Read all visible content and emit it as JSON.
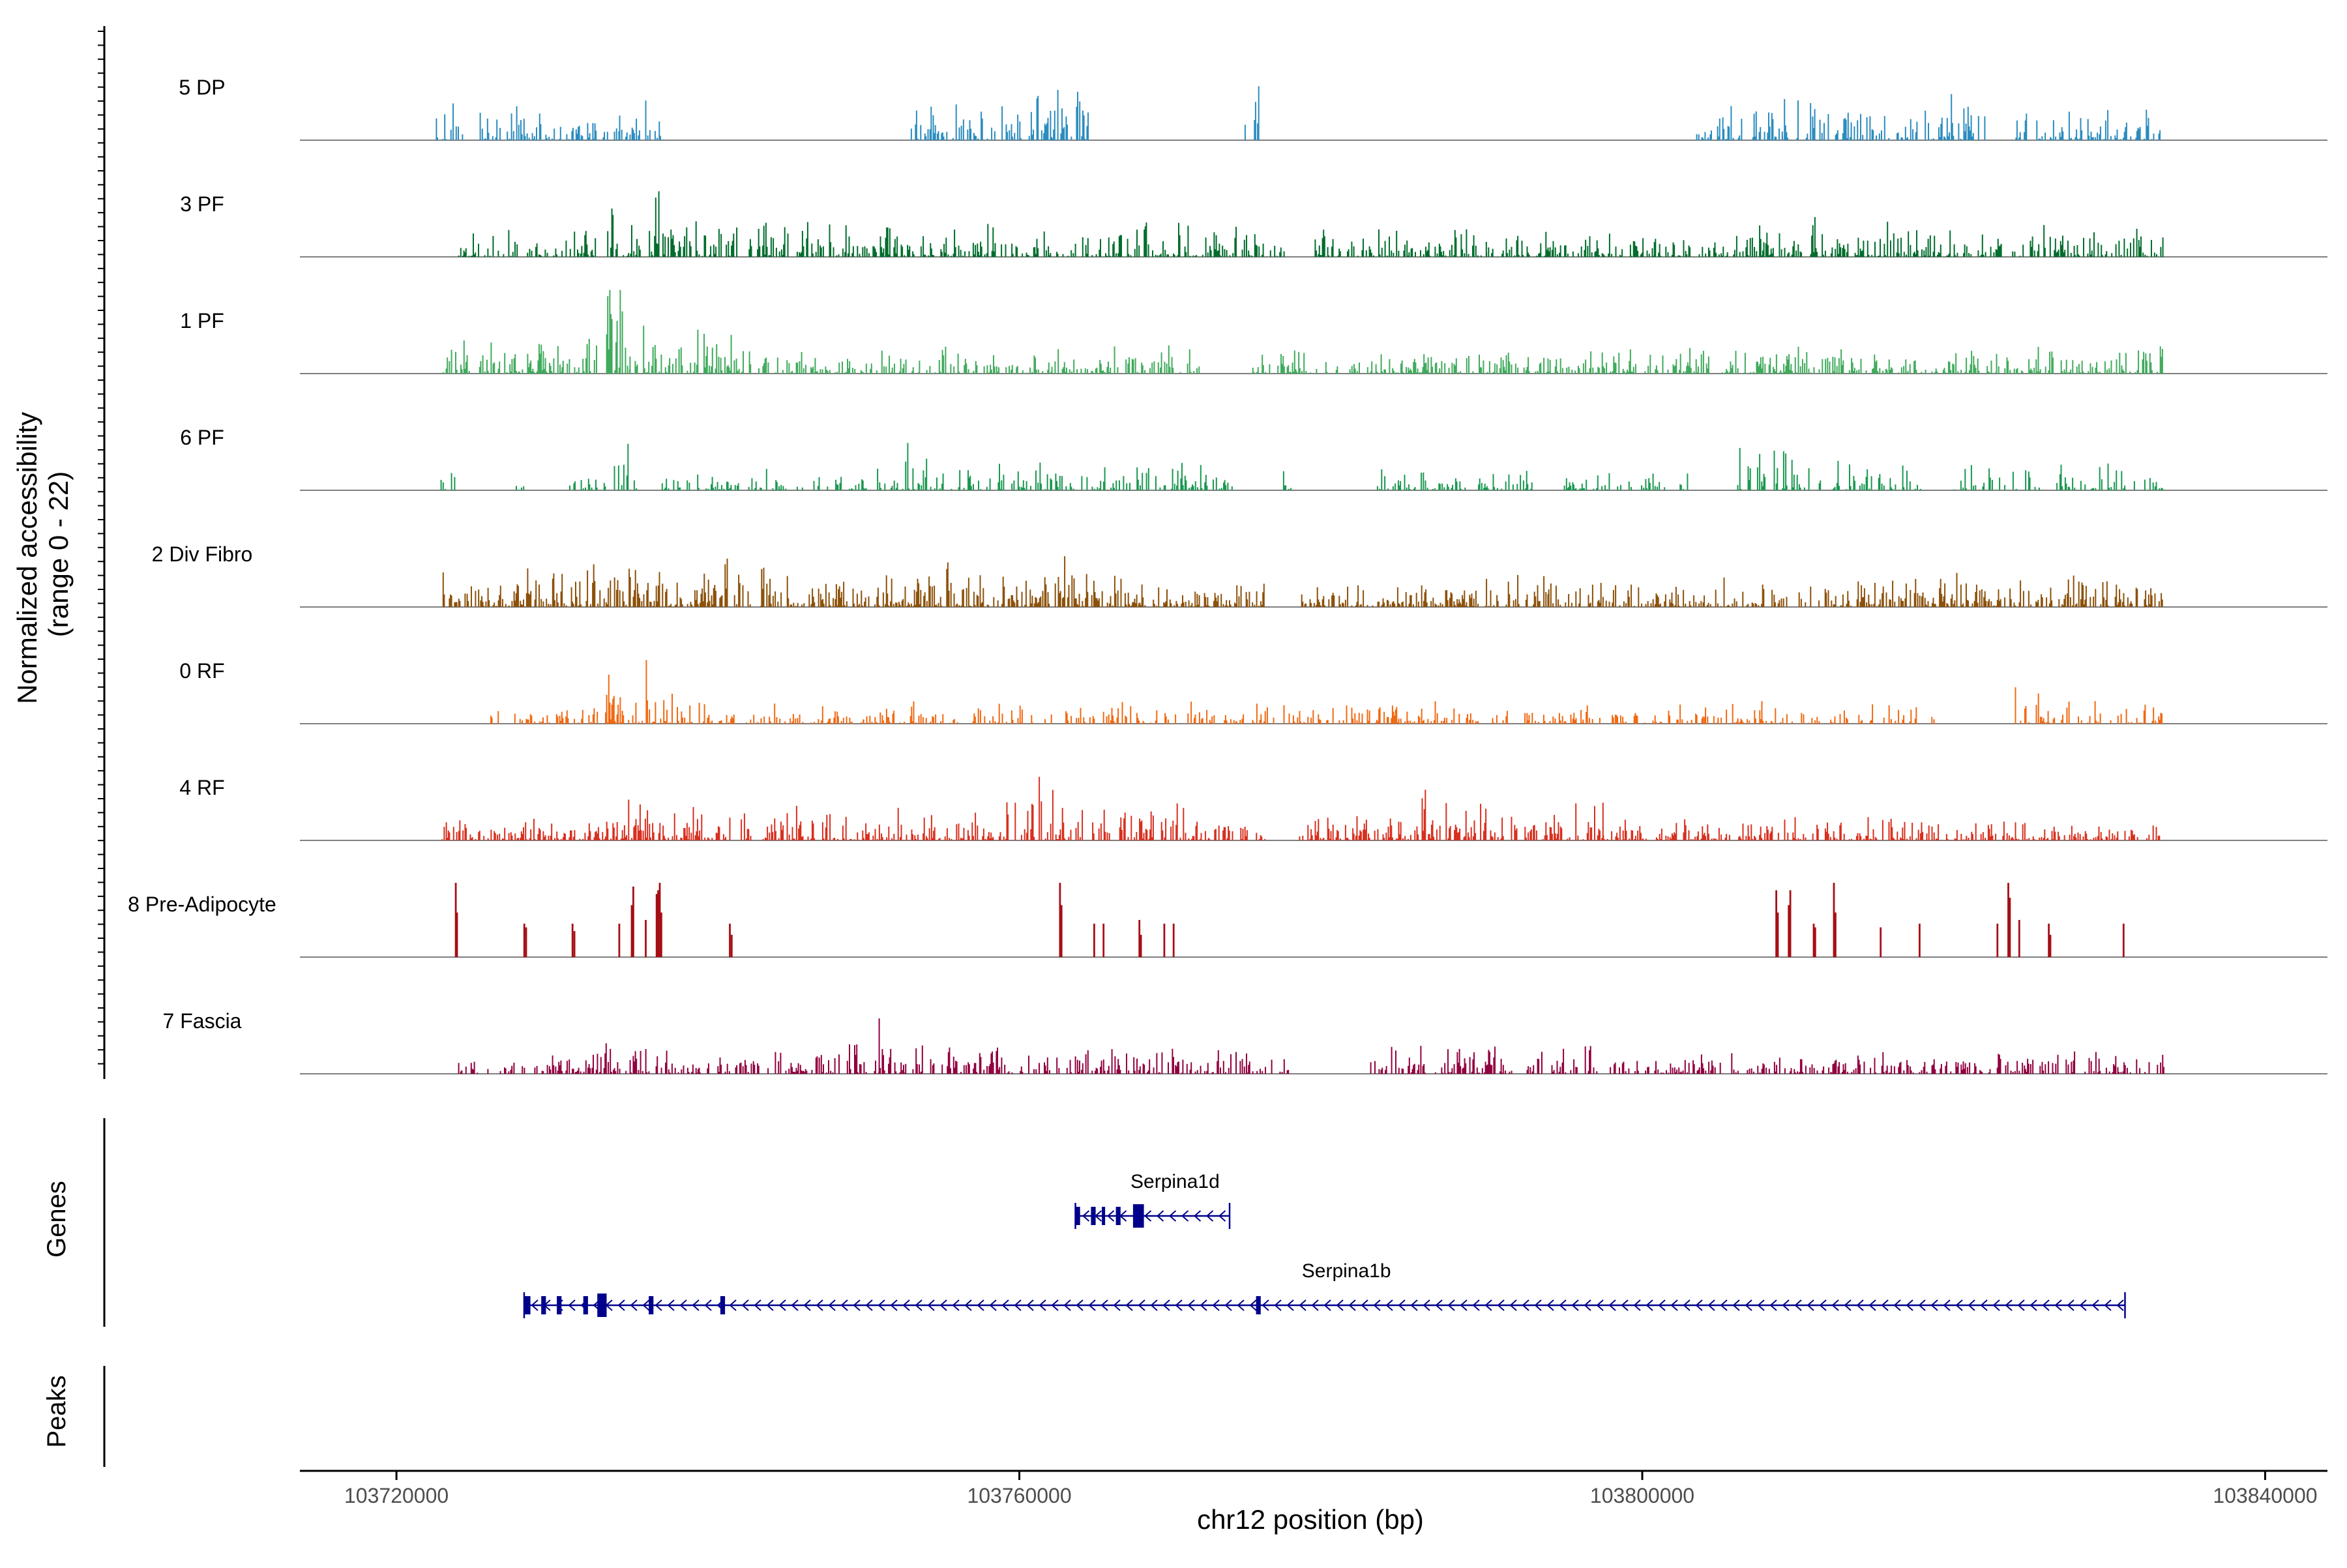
{
  "chart_data": {
    "type": "genome-browser-coverage",
    "y_axis_title_line1": "Normalized accessibility",
    "y_axis_title_line2": "(range 0 - 22)",
    "y_range": [
      0,
      22
    ],
    "x_axis_title": "chr12 position (bp)",
    "x_range": [
      103713800,
      103844000
    ],
    "x_ticks": [
      {
        "value": 103720000,
        "label": "103720000"
      },
      {
        "value": 103760000,
        "label": "103760000"
      },
      {
        "value": 103800000,
        "label": "103800000"
      },
      {
        "value": 103840000,
        "label": "103840000"
      }
    ],
    "tracks": [
      {
        "label": "5 DP",
        "color": "#2b8cbe",
        "seed": 11,
        "density": 0.55,
        "max_height": 0.32,
        "clusters": [
          [
            103722500,
            103734500,
            0.7
          ],
          [
            103734000,
            103737000,
            1.0
          ],
          [
            103753000,
            103762000,
            0.8
          ],
          [
            103761000,
            103764500,
            1.3
          ],
          [
            103774500,
            103775500,
            1.1
          ],
          [
            103803500,
            103809000,
            0.8
          ],
          [
            103809000,
            103822000,
            0.9
          ],
          [
            103824000,
            103833500,
            0.6
          ]
        ]
      },
      {
        "label": "3 PF",
        "color": "#006d2c",
        "seed": 23,
        "density": 0.6,
        "max_height": 0.34,
        "clusters": [
          [
            103724000,
            103733000,
            0.6
          ],
          [
            103733500,
            103737500,
            1.4
          ],
          [
            103737500,
            103748000,
            0.8
          ],
          [
            103748000,
            103763000,
            0.6
          ],
          [
            103763000,
            103777000,
            0.7
          ],
          [
            103779000,
            103790000,
            0.6
          ],
          [
            103790000,
            103806000,
            0.5
          ],
          [
            103806000,
            103812000,
            0.9
          ],
          [
            103812000,
            103833500,
            0.6
          ]
        ]
      },
      {
        "label": "1 PF",
        "color": "#41ab5d",
        "seed": 37,
        "density": 0.6,
        "max_height": 0.5,
        "clusters": [
          [
            103723000,
            103733000,
            0.5
          ],
          [
            103733500,
            103735000,
            1.4
          ],
          [
            103735000,
            103742000,
            0.6
          ],
          [
            103742000,
            103772000,
            0.35
          ],
          [
            103775000,
            103790000,
            0.3
          ],
          [
            103790000,
            103833500,
            0.35
          ]
        ]
      },
      {
        "label": "6 PF",
        "color": "#1a9850",
        "seed": 41,
        "density": 0.45,
        "max_height": 0.36,
        "clusters": [
          [
            103722800,
            103723800,
            0.6
          ],
          [
            103727500,
            103728200,
            0.4
          ],
          [
            103731000,
            103733500,
            0.3
          ],
          [
            103733800,
            103735800,
            1.4
          ],
          [
            103737000,
            103745000,
            0.4
          ],
          [
            103745000,
            103752500,
            0.4
          ],
          [
            103752500,
            103754500,
            0.8
          ],
          [
            103754500,
            103774000,
            0.5
          ],
          [
            103776500,
            103777500,
            0.7
          ],
          [
            103783000,
            103793000,
            0.45
          ],
          [
            103795000,
            103803000,
            0.4
          ],
          [
            103806000,
            103810500,
            0.8
          ],
          [
            103810500,
            103818000,
            0.5
          ],
          [
            103820000,
            103831000,
            0.55
          ],
          [
            103831000,
            103833500,
            0.5
          ]
        ]
      },
      {
        "label": "2 Div Fibro",
        "color": "#8c510a",
        "seed": 53,
        "density": 0.65,
        "max_height": 0.3,
        "clusters": [
          [
            103722800,
            103732000,
            0.8
          ],
          [
            103732000,
            103744500,
            1.0
          ],
          [
            103744500,
            103753000,
            0.7
          ],
          [
            103753000,
            103767000,
            1.0
          ],
          [
            103767000,
            103776000,
            0.55
          ],
          [
            103778000,
            103790000,
            0.5
          ],
          [
            103790000,
            103794000,
            1.0
          ],
          [
            103794000,
            103813000,
            0.6
          ],
          [
            103813000,
            103820000,
            0.7
          ],
          [
            103820000,
            103833500,
            0.7
          ]
        ]
      },
      {
        "label": "0 RF",
        "color": "#f16913",
        "seed": 67,
        "density": 0.5,
        "max_height": 0.48,
        "clusters": [
          [
            103722800,
            103723200,
            0.2
          ],
          [
            103726000,
            103733500,
            0.3
          ],
          [
            103733500,
            103736500,
            1.4
          ],
          [
            103736500,
            103740000,
            0.5
          ],
          [
            103740000,
            103750000,
            0.25
          ],
          [
            103750000,
            103778000,
            0.3
          ],
          [
            103778000,
            103796000,
            0.3
          ],
          [
            103796000,
            103804000,
            0.25
          ],
          [
            103804000,
            103819000,
            0.3
          ],
          [
            103823500,
            103826000,
            0.7
          ],
          [
            103826000,
            103833500,
            0.3
          ]
        ]
      },
      {
        "label": "4 RF",
        "color": "#d7301f",
        "seed": 79,
        "density": 0.6,
        "max_height": 0.33,
        "clusters": [
          [
            103722800,
            103732500,
            0.5
          ],
          [
            103732500,
            103748000,
            0.8
          ],
          [
            103748000,
            103759000,
            0.6
          ],
          [
            103759000,
            103762500,
            1.3
          ],
          [
            103762500,
            103776000,
            0.7
          ],
          [
            103778000,
            103785000,
            0.6
          ],
          [
            103785000,
            103790000,
            1.0
          ],
          [
            103790000,
            103795000,
            0.6
          ],
          [
            103795000,
            103797500,
            1.3
          ],
          [
            103797500,
            103806000,
            0.5
          ],
          [
            103806000,
            103817000,
            0.5
          ],
          [
            103817000,
            103833500,
            0.4
          ]
        ]
      },
      {
        "label": "8 Pre-Adipocyte",
        "color": "#a50f15",
        "seed": 0,
        "density": 0,
        "max_height": 0.64,
        "clusters": [],
        "bars": [
          [
            103723800,
            1.0
          ],
          [
            103723880,
            0.6
          ],
          [
            103728200,
            0.45
          ],
          [
            103728320,
            0.4
          ],
          [
            103731300,
            0.45
          ],
          [
            103731420,
            0.35
          ],
          [
            103734300,
            0.45
          ],
          [
            103735100,
            0.7
          ],
          [
            103735200,
            0.95
          ],
          [
            103736000,
            0.5
          ],
          [
            103736700,
            0.85
          ],
          [
            103736800,
            0.9
          ],
          [
            103736900,
            1.0
          ],
          [
            103737000,
            0.6
          ],
          [
            103741400,
            0.45
          ],
          [
            103741520,
            0.3
          ],
          [
            103762600,
            1.0
          ],
          [
            103762700,
            0.7
          ],
          [
            103764800,
            0.45
          ],
          [
            103765400,
            0.45
          ],
          [
            103767700,
            0.5
          ],
          [
            103767800,
            0.3
          ],
          [
            103769300,
            0.45
          ],
          [
            103769900,
            0.45
          ],
          [
            103808600,
            0.9
          ],
          [
            103808700,
            0.6
          ],
          [
            103809400,
            0.7
          ],
          [
            103809500,
            0.9
          ],
          [
            103811000,
            0.45
          ],
          [
            103811100,
            0.4
          ],
          [
            103812300,
            1.0
          ],
          [
            103812400,
            0.6
          ],
          [
            103815300,
            0.4
          ],
          [
            103817800,
            0.45
          ],
          [
            103822800,
            0.45
          ],
          [
            103823500,
            1.0
          ],
          [
            103823600,
            0.8
          ],
          [
            103824200,
            0.5
          ],
          [
            103826100,
            0.45
          ],
          [
            103826200,
            0.3
          ],
          [
            103830900,
            0.45
          ]
        ]
      },
      {
        "label": "7 Fascia",
        "color": "#91003f",
        "seed": 97,
        "density": 0.55,
        "max_height": 0.36,
        "clusters": [
          [
            103724000,
            103733000,
            0.35
          ],
          [
            103733000,
            103737500,
            0.7
          ],
          [
            103737500,
            103744000,
            0.4
          ],
          [
            103744000,
            103751000,
            0.6
          ],
          [
            103751000,
            103752500,
            1.0
          ],
          [
            103752500,
            103763000,
            0.5
          ],
          [
            103763000,
            103775000,
            0.55
          ],
          [
            103775000,
            103777500,
            0.4
          ],
          [
            103782500,
            103794000,
            0.5
          ],
          [
            103794000,
            103798000,
            0.6
          ],
          [
            103798000,
            103803000,
            0.3
          ],
          [
            103803000,
            103822000,
            0.45
          ],
          [
            103822000,
            103829000,
            0.5
          ],
          [
            103829000,
            103833500,
            0.4
          ]
        ]
      }
    ],
    "genes_panel_title": "Genes",
    "genes": [
      {
        "name": "Serpina1d",
        "start": 103763600,
        "end": 103773500,
        "strand": "-",
        "label_pos": 103770000,
        "exons": [
          [
            103763600,
            103763900
          ],
          [
            103764600,
            103764900
          ],
          [
            103765300,
            103765500
          ],
          [
            103766200,
            103766500
          ],
          [
            103767300,
            103768000
          ]
        ]
      },
      {
        "name": "Serpina1b",
        "start": 103728200,
        "end": 103831000,
        "strand": "-",
        "label_pos": 103781000,
        "exons": [
          [
            103728200,
            103728600
          ],
          [
            103729300,
            103729600
          ],
          [
            103730300,
            103730600
          ],
          [
            103732000,
            103732300
          ],
          [
            103732900,
            103733500
          ],
          [
            103736200,
            103736500
          ],
          [
            103740800,
            103741100
          ],
          [
            103775200,
            103775500
          ]
        ]
      }
    ],
    "peaks_panel_title": "Peaks"
  }
}
